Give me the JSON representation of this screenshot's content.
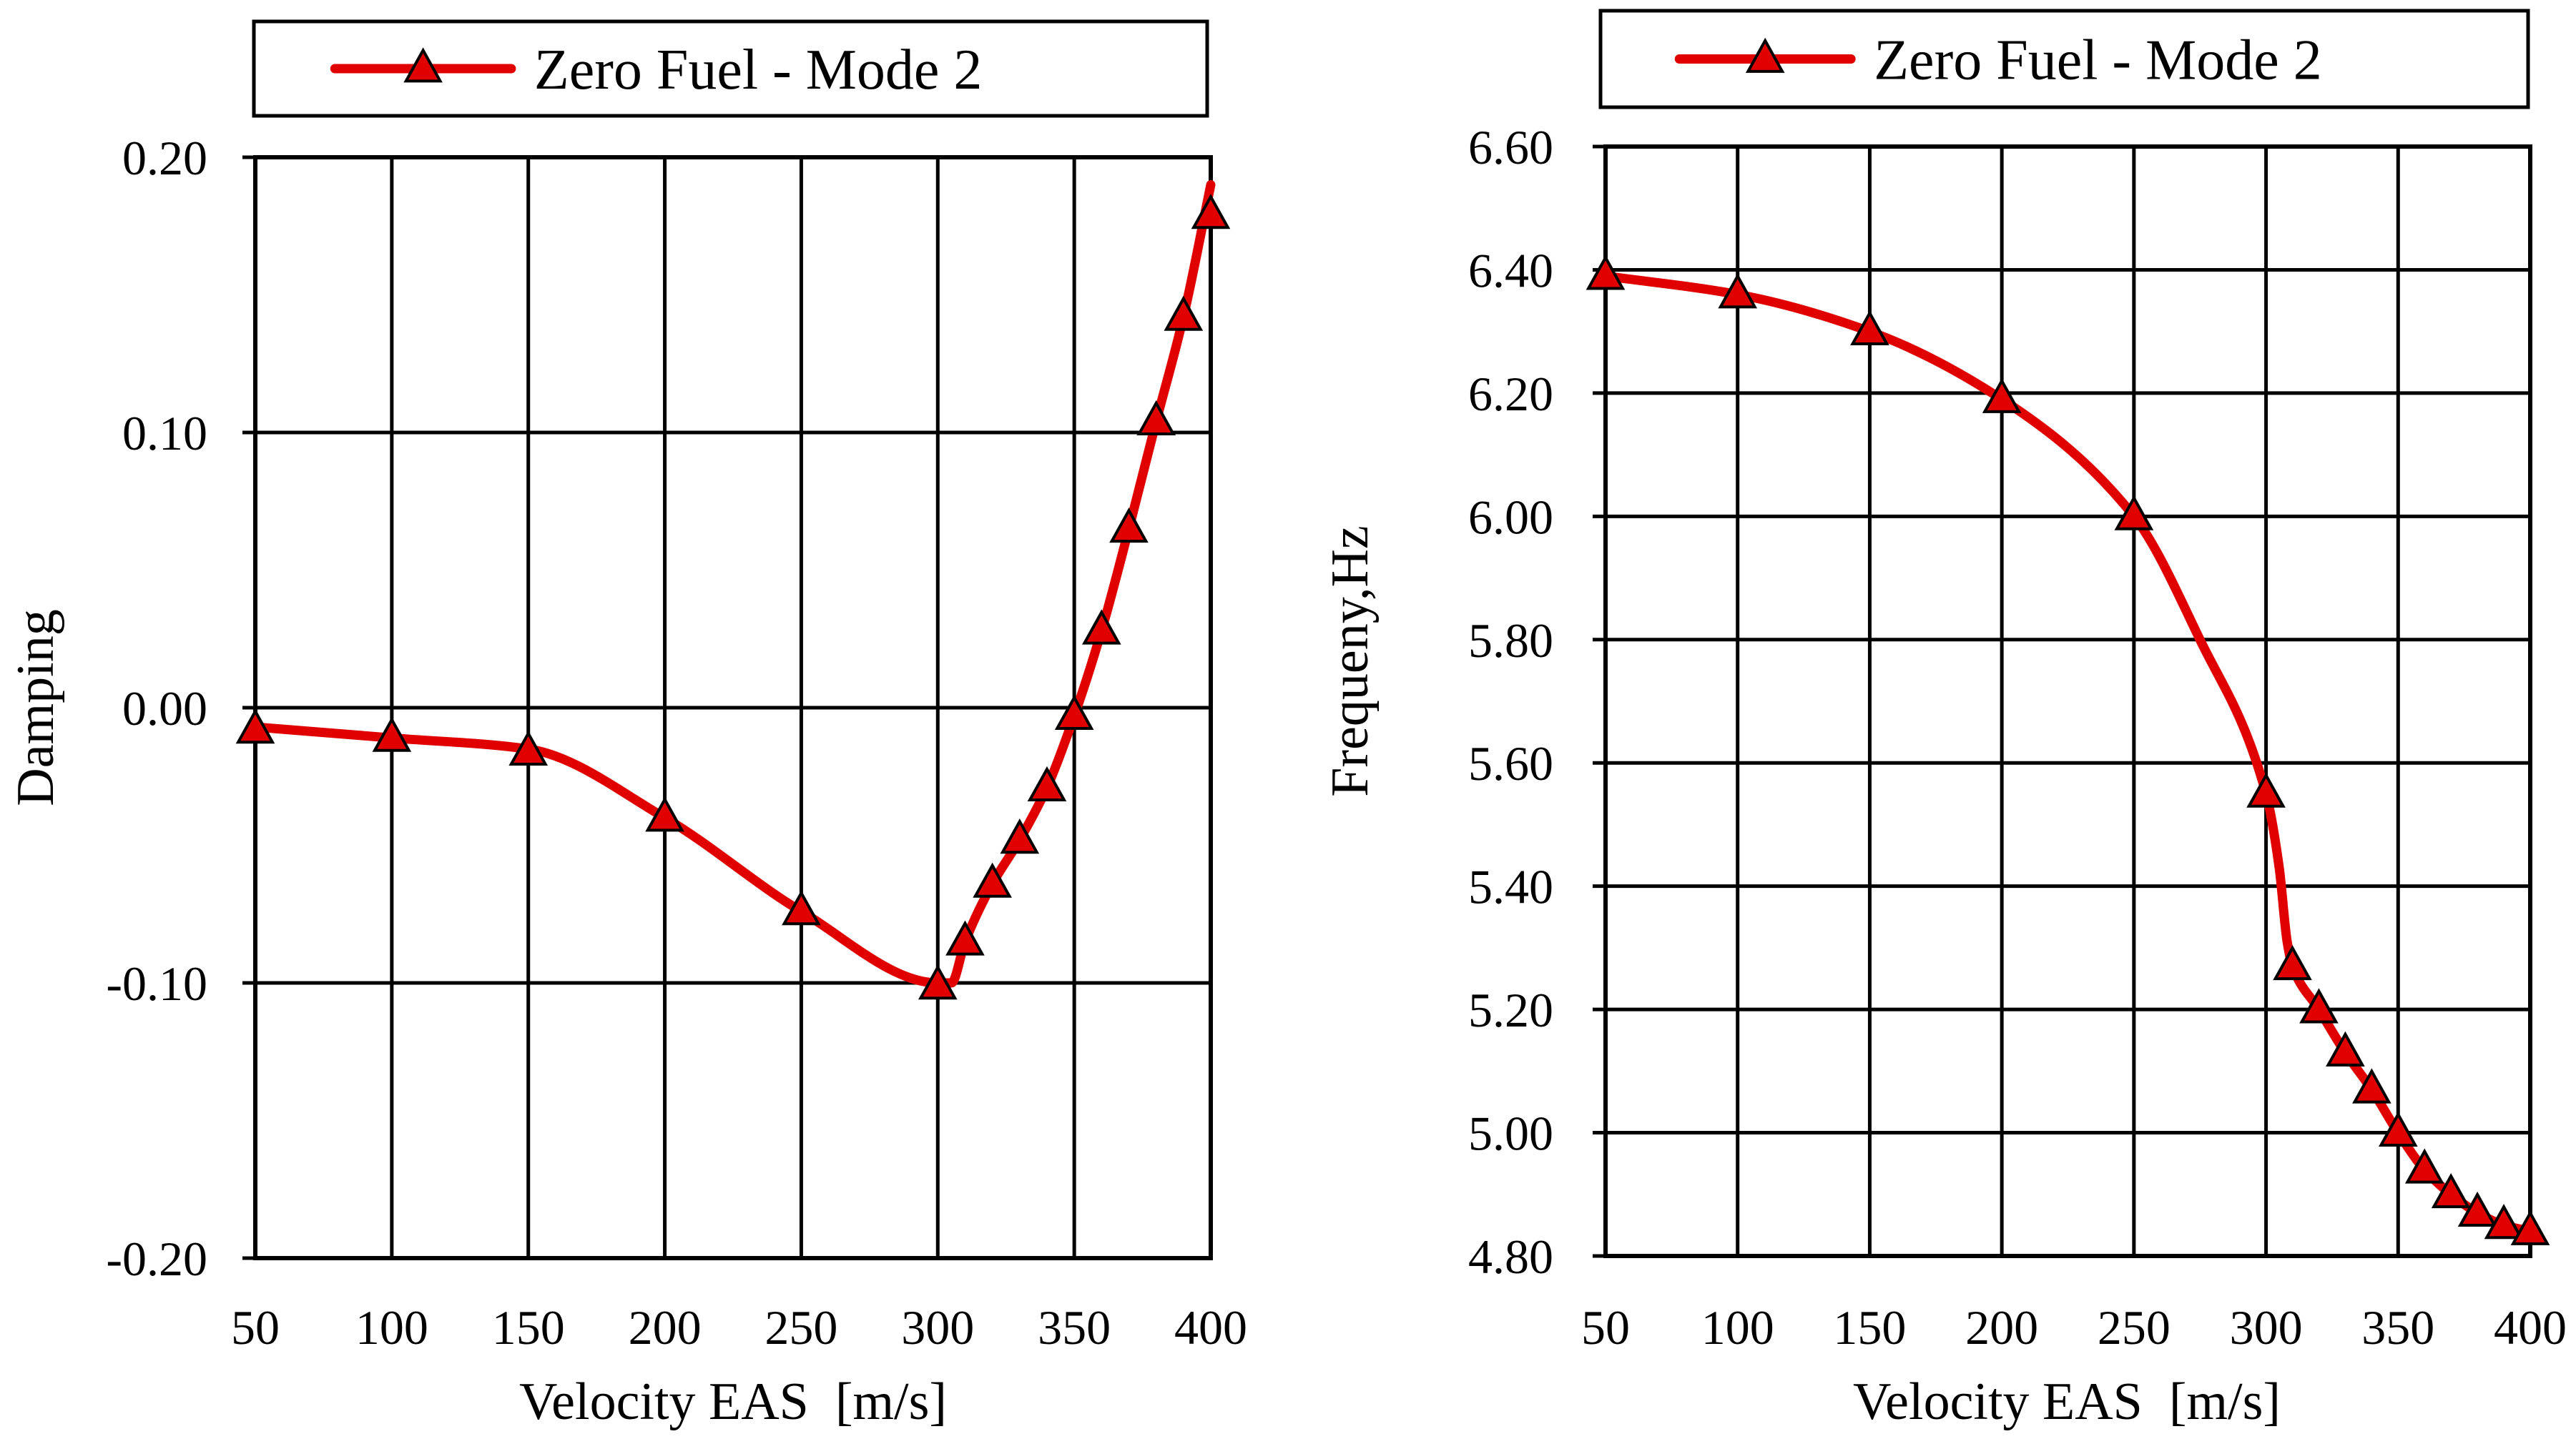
{
  "chart_data": [
    {
      "type": "line",
      "title": "",
      "xlabel": "Velocity EAS  [m/s]",
      "ylabel": "Damping",
      "xlim": [
        50,
        400
      ],
      "ylim": [
        -0.2,
        0.2
      ],
      "xticks": [
        50,
        100,
        150,
        200,
        250,
        300,
        350,
        400
      ],
      "yticks": [
        -0.2,
        -0.1,
        0.0,
        0.1,
        0.2
      ],
      "ytick_labels": [
        "-0.20",
        "-0.10",
        "0.00",
        "0.10",
        "0.20"
      ],
      "xtick_labels": [
        "50",
        "100",
        "150",
        "200",
        "250",
        "300",
        "350",
        "400"
      ],
      "grid": true,
      "legend": {
        "position": "top",
        "entries": [
          "Zero Fuel - Mode 2"
        ]
      },
      "series": [
        {
          "name": "Zero Fuel - Mode 2",
          "color": "#e00000",
          "marker": "triangle",
          "x": [
            50,
            100,
            150,
            200,
            250,
            300,
            310,
            320,
            330,
            340,
            350,
            360,
            370,
            380,
            390,
            400
          ],
          "y": [
            -0.008,
            -0.011,
            -0.016,
            -0.04,
            -0.074,
            -0.101,
            -0.085,
            -0.064,
            -0.048,
            -0.029,
            -0.003,
            0.028,
            0.065,
            0.104,
            0.142,
            0.179
          ],
          "curve_x": [
            50,
            100,
            150,
            200,
            250,
            300,
            305,
            310,
            320,
            330,
            340,
            350,
            360,
            370,
            380,
            390,
            400
          ],
          "curve_y": [
            -0.007,
            -0.011,
            -0.015,
            -0.04,
            -0.074,
            -0.1,
            -0.1,
            -0.085,
            -0.064,
            -0.048,
            -0.029,
            -0.003,
            0.028,
            0.065,
            0.104,
            0.142,
            0.19
          ]
        }
      ]
    },
    {
      "type": "line",
      "title": "",
      "xlabel": "Velocity EAS  [m/s]",
      "ylabel": "Frequeny,Hz",
      "xlim": [
        50,
        400
      ],
      "ylim": [
        4.8,
        6.6
      ],
      "xticks": [
        50,
        100,
        150,
        200,
        250,
        300,
        350,
        400
      ],
      "yticks": [
        4.8,
        5.0,
        5.2,
        5.4,
        5.6,
        5.8,
        6.0,
        6.2,
        6.4,
        6.6
      ],
      "ytick_labels": [
        "4.80",
        "5.00",
        "5.20",
        "5.40",
        "5.60",
        "5.80",
        "6.00",
        "6.20",
        "6.40",
        "6.60"
      ],
      "xtick_labels": [
        "50",
        "100",
        "150",
        "200",
        "250",
        "300",
        "350",
        "400"
      ],
      "grid": true,
      "legend": {
        "position": "top",
        "entries": [
          "Zero Fuel - Mode 2"
        ]
      },
      "series": [
        {
          "name": "Zero Fuel - Mode 2",
          "color": "#e00000",
          "marker": "triangle",
          "x": [
            50,
            100,
            150,
            200,
            250,
            300,
            310,
            320,
            330,
            340,
            350,
            360,
            370,
            380,
            390,
            400
          ],
          "y": [
            6.39,
            6.36,
            6.3,
            6.19,
            6.0,
            5.55,
            5.27,
            5.2,
            5.13,
            5.07,
            5.0,
            4.94,
            4.9,
            4.87,
            4.85,
            4.84
          ],
          "curve_x": [
            50,
            100,
            150,
            200,
            250,
            275,
            300,
            305,
            308,
            310,
            320,
            330,
            340,
            350,
            360,
            370,
            380,
            390,
            400
          ],
          "curve_y": [
            6.39,
            6.36,
            6.3,
            6.19,
            6.0,
            5.8,
            5.55,
            5.43,
            5.31,
            5.27,
            5.2,
            5.13,
            5.07,
            5.0,
            4.94,
            4.9,
            4.87,
            4.85,
            4.84
          ]
        }
      ]
    }
  ]
}
